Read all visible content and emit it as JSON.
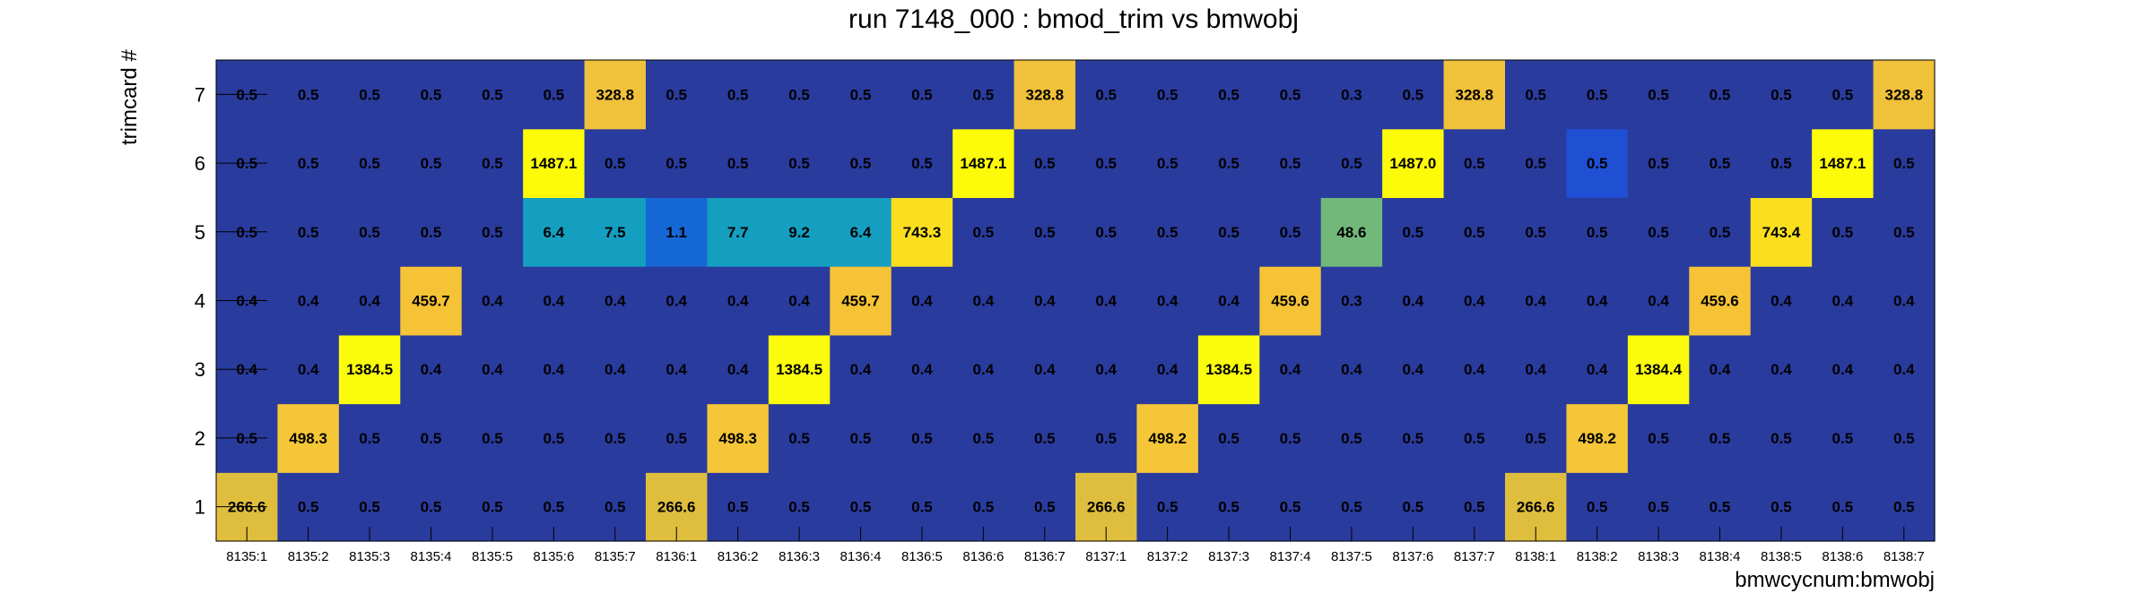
{
  "chart_data": {
    "type": "heatmap",
    "title": "run 7148_000 : bmod_trim vs bmwobj",
    "xlabel": "bmwcycnum:bmwobj",
    "ylabel": "trimcard #",
    "x_categories": [
      "8135:1",
      "8135:2",
      "8135:3",
      "8135:4",
      "8135:5",
      "8135:6",
      "8135:7",
      "8136:1",
      "8136:2",
      "8136:3",
      "8136:4",
      "8136:5",
      "8136:6",
      "8136:7",
      "8137:1",
      "8137:2",
      "8137:3",
      "8137:4",
      "8137:5",
      "8137:6",
      "8137:7",
      "8138:1",
      "8138:2",
      "8138:3",
      "8138:4",
      "8138:5",
      "8138:6",
      "8138:7"
    ],
    "y_categories": [
      "1",
      "2",
      "3",
      "4",
      "5",
      "6",
      "7"
    ],
    "values": [
      [
        "266.6",
        "0.5",
        "0.5",
        "0.5",
        "0.5",
        "0.5",
        "0.5",
        "266.6",
        "0.5",
        "0.5",
        "0.5",
        "0.5",
        "0.5",
        "0.5",
        "266.6",
        "0.5",
        "0.5",
        "0.5",
        "0.5",
        "0.5",
        "0.5",
        "266.6",
        "0.5",
        "0.5",
        "0.5",
        "0.5",
        "0.5",
        "0.5"
      ],
      [
        "0.5",
        "498.3",
        "0.5",
        "0.5",
        "0.5",
        "0.5",
        "0.5",
        "0.5",
        "498.3",
        "0.5",
        "0.5",
        "0.5",
        "0.5",
        "0.5",
        "0.5",
        "498.2",
        "0.5",
        "0.5",
        "0.5",
        "0.5",
        "0.5",
        "0.5",
        "498.2",
        "0.5",
        "0.5",
        "0.5",
        "0.5",
        "0.5"
      ],
      [
        "0.4",
        "0.4",
        "1384.5",
        "0.4",
        "0.4",
        "0.4",
        "0.4",
        "0.4",
        "0.4",
        "1384.5",
        "0.4",
        "0.4",
        "0.4",
        "0.4",
        "0.4",
        "0.4",
        "1384.5",
        "0.4",
        "0.4",
        "0.4",
        "0.4",
        "0.4",
        "0.4",
        "1384.4",
        "0.4",
        "0.4",
        "0.4",
        "0.4"
      ],
      [
        "0.4",
        "0.4",
        "0.4",
        "459.7",
        "0.4",
        "0.4",
        "0.4",
        "0.4",
        "0.4",
        "0.4",
        "459.7",
        "0.4",
        "0.4",
        "0.4",
        "0.4",
        "0.4",
        "0.4",
        "459.6",
        "0.3",
        "0.4",
        "0.4",
        "0.4",
        "0.4",
        "0.4",
        "459.6",
        "0.4",
        "0.4",
        "0.4"
      ],
      [
        "0.5",
        "0.5",
        "0.5",
        "0.5",
        "0.5",
        "6.4",
        "7.5",
        "1.1",
        "7.7",
        "9.2",
        "6.4",
        "743.3",
        "0.5",
        "0.5",
        "0.5",
        "0.5",
        "0.5",
        "0.5",
        "48.6",
        "0.5",
        "0.5",
        "0.5",
        "0.5",
        "0.5",
        "0.5",
        "743.4",
        "0.5",
        "0.5"
      ],
      [
        "0.5",
        "0.5",
        "0.5",
        "0.5",
        "0.5",
        "1487.1",
        "0.5",
        "0.5",
        "0.5",
        "0.5",
        "0.5",
        "0.5",
        "1487.1",
        "0.5",
        "0.5",
        "0.5",
        "0.5",
        "0.5",
        "0.5",
        "1487.0",
        "0.5",
        "0.5",
        "0.5",
        "0.5",
        "0.5",
        "0.5",
        "1487.1",
        "0.5"
      ],
      [
        "0.5",
        "0.5",
        "0.5",
        "0.5",
        "0.5",
        "0.5",
        "328.8",
        "0.5",
        "0.5",
        "0.5",
        "0.5",
        "0.5",
        "0.5",
        "328.8",
        "0.5",
        "0.5",
        "0.5",
        "0.5",
        "0.3",
        "0.5",
        "328.8",
        "0.5",
        "0.5",
        "0.5",
        "0.5",
        "0.5",
        "0.5",
        "328.8"
      ]
    ],
    "colors": {
      "low": "#2a3b9e",
      "cells": {
        "6.4": "#149fc1",
        "7.5": "#149fc1",
        "7.7": "#149fc1",
        "9.2": "#149fc1",
        "1.1": "#1568d6",
        "48.6": "#72b87a",
        "266.6": "#dfbe3e",
        "328.8": "#f0c13a",
        "459.7": "#f6c336",
        "459.6": "#f6c336",
        "498.3": "#f5c637",
        "498.2": "#f5c637",
        "743.3": "#fbdf1f",
        "743.4": "#fbdf1f",
        "1384.5": "#fbfb0c",
        "1384.4": "#fbfb0c",
        "1487.1": "#fdfb0a",
        "1487.0": "#fdfb0a"
      },
      "special": [
        {
          "row": 5,
          "col": 22,
          "color": "#1f4fd2"
        }
      ]
    }
  }
}
